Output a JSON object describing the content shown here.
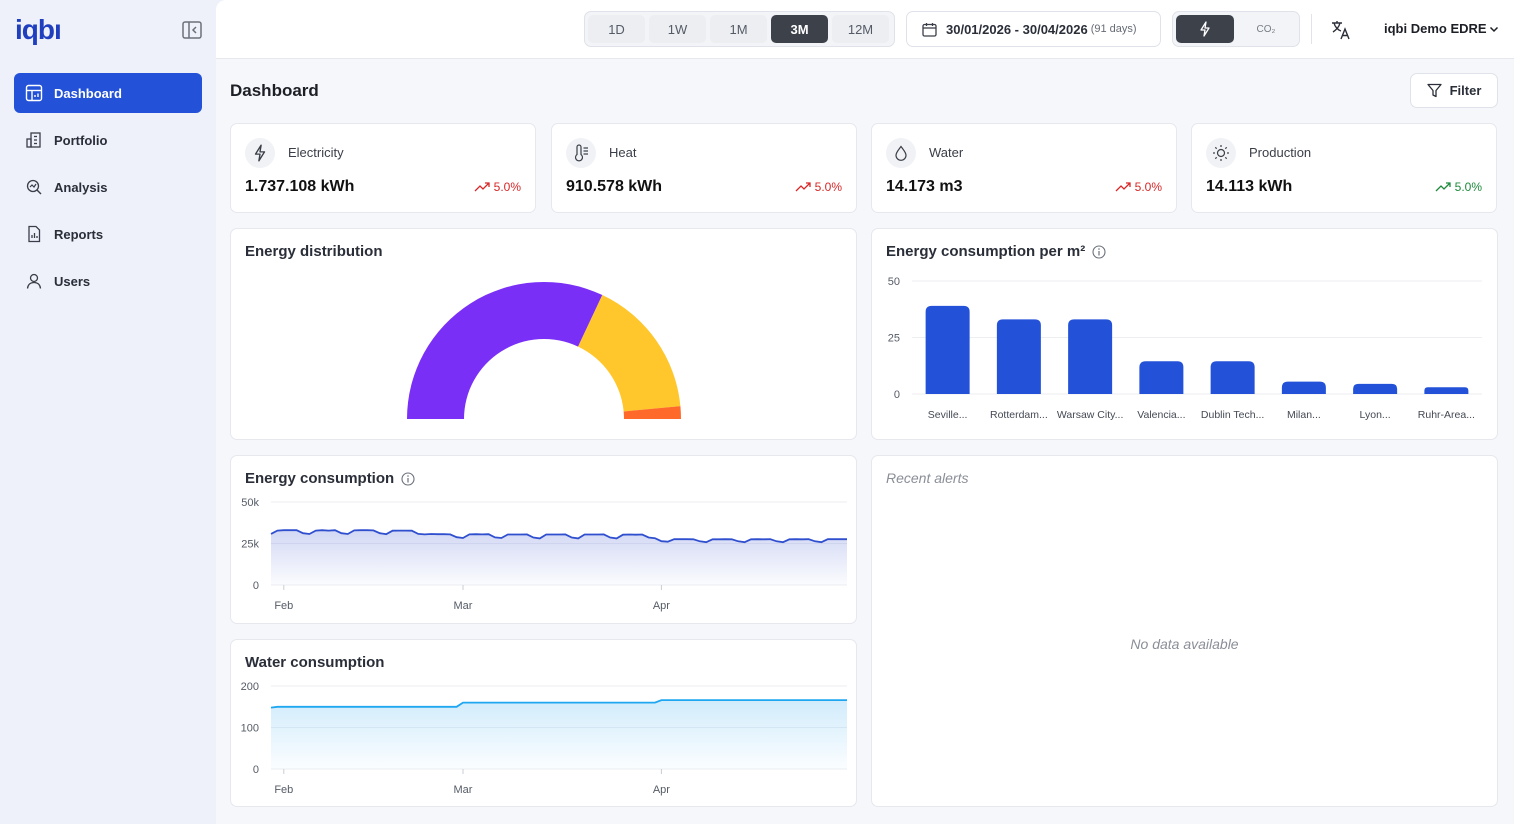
{
  "app": {
    "logo": "iqbı"
  },
  "sidebar": {
    "items": [
      {
        "label": "Dashboard",
        "icon": "dashboard-icon",
        "active": true
      },
      {
        "label": "Portfolio",
        "icon": "buildings-icon",
        "active": false
      },
      {
        "label": "Analysis",
        "icon": "analysis-icon",
        "active": false
      },
      {
        "label": "Reports",
        "icon": "report-icon",
        "active": false
      },
      {
        "label": "Users",
        "icon": "user-icon",
        "active": false
      }
    ]
  },
  "topbar": {
    "ranges": [
      {
        "label": "1D",
        "active": false
      },
      {
        "label": "1W",
        "active": false
      },
      {
        "label": "1M",
        "active": false
      },
      {
        "label": "3M",
        "active": true
      },
      {
        "label": "12M",
        "active": false
      }
    ],
    "date_range": "30/01/2026 - 30/04/2026",
    "date_days": "(91 days)",
    "metric_co2": "CO₂",
    "account": "iqbi Demo EDRE"
  },
  "page": {
    "title": "Dashboard",
    "filter_label": "Filter"
  },
  "kpis": [
    {
      "label": "Electricity",
      "value": "1.737.108 kWh",
      "trend": "5.0%",
      "trend_color": "#d62828",
      "icon": "bolt-icon"
    },
    {
      "label": "Heat",
      "value": "910.578 kWh",
      "trend": "5.0%",
      "trend_color": "#d62828",
      "icon": "thermometer-icon"
    },
    {
      "label": "Water",
      "value": "14.173 m3",
      "trend": "5.0%",
      "trend_color": "#d62828",
      "icon": "droplet-icon"
    },
    {
      "label": "Production",
      "value": "14.113 kWh",
      "trend": "5.0%",
      "trend_color": "#1e8a3c",
      "icon": "sun-icon"
    }
  ],
  "alerts": {
    "title": "Recent alerts",
    "empty": "No data available"
  },
  "colors": {
    "accent": "#2352d8",
    "bar": "#2352d8",
    "line_energy": "#2f4fcf",
    "line_water": "#1ea7f0",
    "gauge_purple": "#7a2ff7",
    "gauge_yellow": "#ffc72c",
    "gauge_orange": "#ff6a2b"
  },
  "chart_data": [
    {
      "id": "energy-distribution",
      "type": "pie",
      "title": "Energy distribution",
      "style": "half-donut",
      "slices": [
        {
          "name": "",
          "value": 64,
          "color": "#7a2ff7"
        },
        {
          "name": "",
          "value": 33,
          "color": "#ffc72c"
        },
        {
          "name": "",
          "value": 3,
          "color": "#ff6a2b"
        }
      ]
    },
    {
      "id": "energy-per-m2",
      "type": "bar",
      "title": "Energy consumption per m²",
      "categories": [
        "Seville...",
        "Rotterdam...",
        "Warsaw City...",
        "Valencia...",
        "Dublin Tech...",
        "Milan...",
        "Lyon...",
        "Ruhr-Area..."
      ],
      "values": [
        39,
        33,
        33,
        14.5,
        14.5,
        5.5,
        4.5,
        3
      ],
      "yticks": [
        0,
        25,
        50
      ],
      "ylim": [
        0,
        50
      ],
      "grid": true
    },
    {
      "id": "energy-consumption",
      "type": "area",
      "title": "Energy consumption",
      "xticks": [
        "Feb",
        "Mar",
        "Apr"
      ],
      "yticks": [
        "0",
        "25k",
        "50k"
      ],
      "ylim": [
        0,
        50000
      ],
      "x_start": "2026-01-30",
      "values": [
        30800,
        32800,
        33000,
        33000,
        33000,
        31200,
        30700,
        32800,
        33000,
        32800,
        33000,
        31200,
        30700,
        32900,
        33000,
        33000,
        32900,
        31200,
        30600,
        32700,
        32800,
        32800,
        32700,
        30800,
        30500,
        30700,
        30600,
        30600,
        30500,
        28800,
        28300,
        30500,
        30600,
        30500,
        30600,
        28700,
        28300,
        30400,
        30400,
        30400,
        30500,
        28600,
        28100,
        30400,
        30400,
        30400,
        30500,
        28600,
        28100,
        30400,
        30400,
        30400,
        30500,
        28600,
        28100,
        30300,
        30400,
        30300,
        30400,
        28600,
        28200,
        26400,
        26100,
        27600,
        27600,
        27600,
        27500,
        26300,
        25800,
        27500,
        27500,
        27600,
        27500,
        26300,
        25800,
        27500,
        27600,
        27500,
        27600,
        26300,
        25800,
        27500,
        27600,
        27500,
        27600,
        26300,
        25800,
        27600,
        27600,
        27600,
        27600
      ],
      "grid": true
    },
    {
      "id": "water-consumption",
      "type": "area",
      "title": "Water consumption",
      "xticks": [
        "Feb",
        "Mar",
        "Apr"
      ],
      "yticks": [
        "0",
        "100",
        "200"
      ],
      "ylim": [
        0,
        200
      ],
      "x_start": "2026-01-30",
      "values": [
        148,
        150,
        150,
        150,
        150,
        150,
        150,
        150,
        150,
        150,
        150,
        150,
        150,
        150,
        150,
        150,
        150,
        150,
        150,
        150,
        150,
        150,
        150,
        150,
        150,
        150,
        150,
        150,
        150,
        150,
        160,
        160,
        160,
        160,
        160,
        160,
        160,
        160,
        160,
        160,
        160,
        160,
        160,
        160,
        160,
        160,
        160,
        160,
        160,
        160,
        160,
        160,
        160,
        160,
        160,
        160,
        160,
        160,
        160,
        160,
        160,
        166,
        166,
        166,
        166,
        166,
        166,
        166,
        166,
        166,
        166,
        166,
        166,
        166,
        166,
        166,
        166,
        166,
        166,
        166,
        166,
        166,
        166,
        166,
        166,
        166,
        166,
        166,
        166,
        166,
        166
      ],
      "grid": true
    }
  ]
}
